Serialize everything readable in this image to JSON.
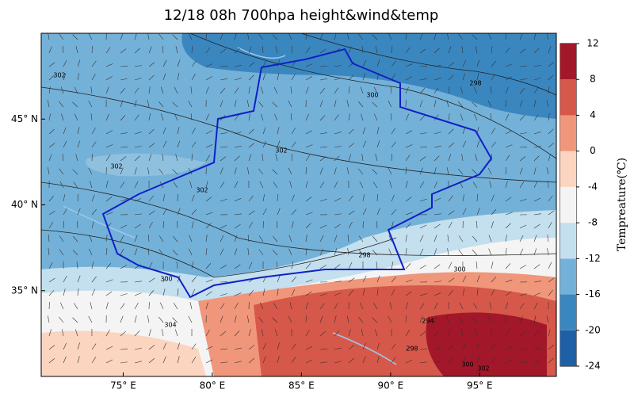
{
  "title": "12/18 08h 700hpa height&wind&temp",
  "map": {
    "xlim": [
      70.4,
      99.3
    ],
    "ylim": [
      30,
      50
    ],
    "xticks": [
      {
        "value": 75,
        "label": "75° E"
      },
      {
        "value": 80,
        "label": "80° E"
      },
      {
        "value": 85,
        "label": "85° E"
      },
      {
        "value": 90,
        "label": "90° E"
      },
      {
        "value": 95,
        "label": "95° E"
      }
    ],
    "yticks": [
      {
        "value": 45,
        "label": "45° N"
      },
      {
        "value": 40,
        "label": "40° N"
      },
      {
        "value": 35,
        "label": "35° N"
      }
    ],
    "contour_labels": [
      "302",
      "302",
      "302",
      "302",
      "300",
      "298",
      "300",
      "300",
      "298",
      "294",
      "298",
      "300",
      "302",
      "304"
    ]
  },
  "colorbar": {
    "label": "Tempreature(℃)",
    "vlim": [
      -24,
      12
    ],
    "ticks": [
      12,
      8,
      4,
      0,
      -4,
      -8,
      -12,
      -16,
      -20,
      -24
    ],
    "colors": [
      "#1f5fa5",
      "#3a87c0",
      "#74b1d8",
      "#c4dfee",
      "#f4f4f4",
      "#fbd5c0",
      "#f0967a",
      "#d6584a",
      "#a3172a"
    ]
  }
}
